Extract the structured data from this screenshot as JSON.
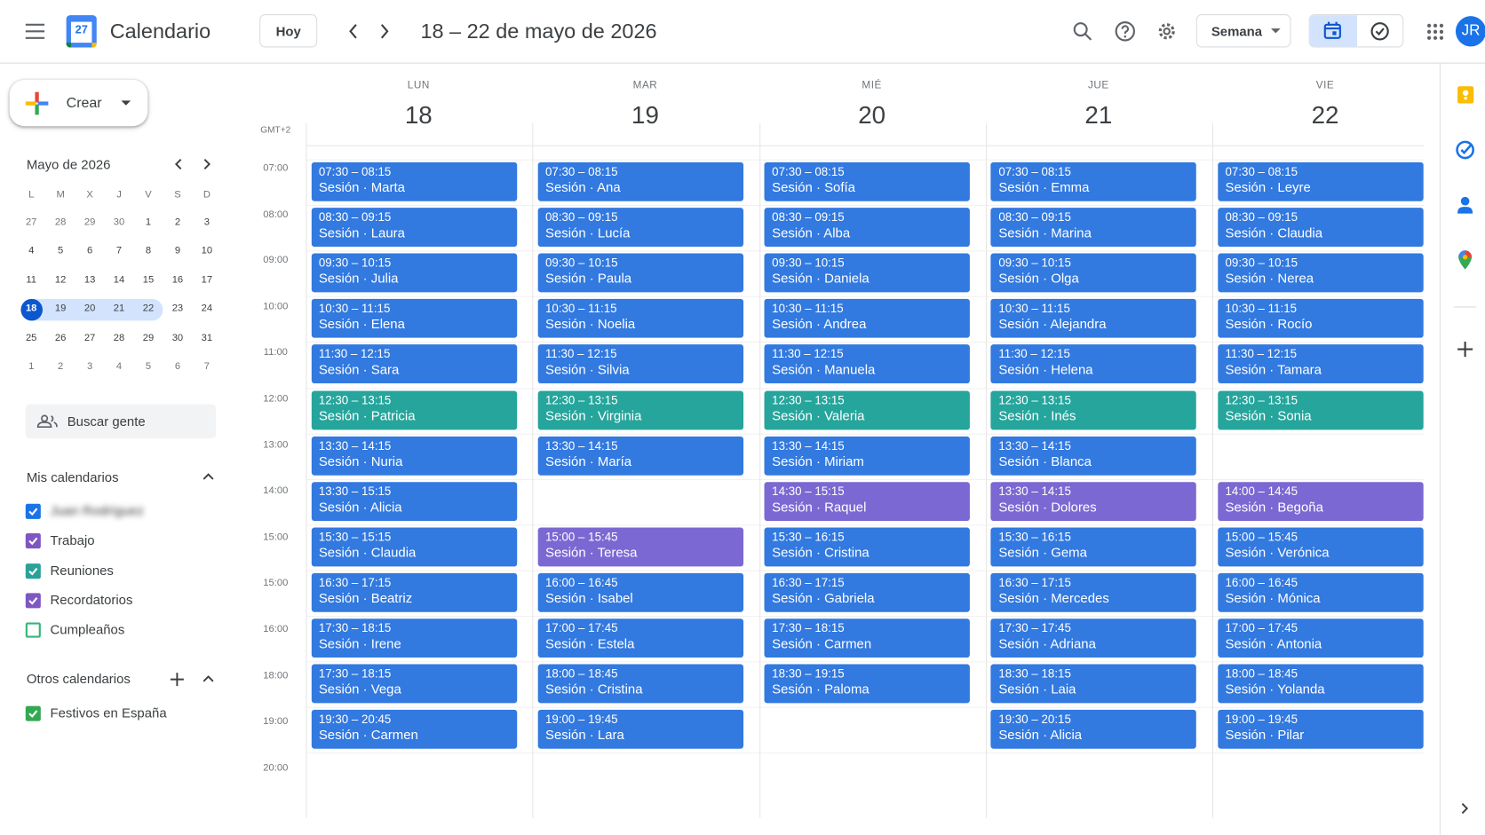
{
  "header": {
    "logo_day": "27",
    "app_name": "Calendario",
    "today_button": "Hoy",
    "date_range": "18 – 22 de mayo de 2026",
    "view_selector": "Semana",
    "avatar_initials": "JR"
  },
  "sidebar": {
    "create_button": "Crear",
    "mini_calendar": {
      "title": "Mayo de 2026",
      "weekdays": [
        "L",
        "M",
        "X",
        "J",
        "V",
        "S",
        "D"
      ],
      "weeks": [
        [
          "27",
          "28",
          "29",
          "30",
          "1",
          "2",
          "3"
        ],
        [
          "4",
          "5",
          "6",
          "7",
          "8",
          "9",
          "10"
        ],
        [
          "11",
          "12",
          "13",
          "14",
          "15",
          "16",
          "17"
        ],
        [
          "18",
          "19",
          "20",
          "21",
          "22",
          "23",
          "24"
        ],
        [
          "25",
          "26",
          "27",
          "28",
          "29",
          "30",
          "31"
        ],
        [
          "1",
          "2",
          "3",
          "4",
          "5",
          "6",
          "7"
        ]
      ],
      "today": "18"
    },
    "search_people": "Buscar gente",
    "my_calendars": {
      "title": "Mis calendarios",
      "items": [
        {
          "label": "Juan Rodríguez",
          "color": "#1a73e8",
          "checked": true,
          "blurred": true
        },
        {
          "label": "Trabajo",
          "color": "#7e57c2",
          "checked": true
        },
        {
          "label": "Reuniones",
          "color": "#2aa198",
          "checked": true
        },
        {
          "label": "Recordatorios",
          "color": "#7e57c2",
          "checked": true
        },
        {
          "label": "Cumpleaños",
          "color": "#33b679",
          "checked": false
        }
      ]
    },
    "other_calendars": {
      "title": "Otros calendarios",
      "items": [
        {
          "label": "Festivos en España",
          "color": "#33a852",
          "checked": true
        }
      ]
    }
  },
  "week": {
    "timezone": "GMT+2",
    "hours": [
      "07:00",
      "08:00",
      "09:00",
      "10:00",
      "11:00",
      "12:00",
      "13:00",
      "14:00",
      "15:00",
      "15:00",
      "16:00",
      "18:00",
      "19:00",
      "20:00"
    ],
    "days": [
      {
        "weekday": "LUN",
        "day": "18",
        "events": [
          {
            "time": "07:30 – 08:15",
            "title": "Sesión · Marta",
            "color": "#3279e0"
          },
          {
            "time": "08:30 – 09:15",
            "title": "Sesión · Laura",
            "color": "#3279e0"
          },
          {
            "time": "09:30 – 10:15",
            "title": "Sesión · Julia",
            "color": "#3279e0"
          },
          {
            "time": "10:30 – 11:15",
            "title": "Sesión · Elena",
            "color": "#3279e0"
          },
          {
            "time": "11:30 – 12:15",
            "title": "Sesión · Sara",
            "color": "#3279e0"
          },
          {
            "time": "12:30 – 13:15",
            "title": "Sesión · Patricia",
            "color": "#26a59c"
          },
          {
            "time": "13:30 – 14:15",
            "title": "Sesión · Nuria",
            "color": "#3279e0"
          },
          {
            "time": "13:30 – 15:15",
            "title": "Sesión · Alicia",
            "color": "#3279e0"
          },
          {
            "time": "15:30 – 15:15",
            "title": "Sesión · Claudia",
            "color": "#3279e0"
          },
          {
            "time": "16:30 – 17:15",
            "title": "Sesión · Beatriz",
            "color": "#3279e0"
          },
          {
            "time": "17:30 – 18:15",
            "title": "Sesión · Irene",
            "color": "#3279e0"
          },
          {
            "time": "17:30 – 18:15",
            "title": "Sesión · Vega",
            "color": "#3279e0"
          },
          {
            "time": "19:30 – 20:45",
            "title": "Sesión · Carmen",
            "color": "#3279e0"
          }
        ]
      },
      {
        "weekday": "MAR",
        "day": "19",
        "events": [
          {
            "time": "07:30 – 08:15",
            "title": "Sesión · Ana",
            "color": "#3279e0"
          },
          {
            "time": "08:30 – 09:15",
            "title": "Sesión · Lucía",
            "color": "#3279e0"
          },
          {
            "time": "09:30 – 10:15",
            "title": "Sesión · Paula",
            "color": "#3279e0"
          },
          {
            "time": "10:30 – 11:15",
            "title": "Sesión · Noelia",
            "color": "#3279e0"
          },
          {
            "time": "11:30 – 12:15",
            "title": "Sesión · Silvia",
            "color": "#3279e0"
          },
          {
            "time": "12:30 – 13:15",
            "title": "Sesión · Virginia",
            "color": "#26a59c"
          },
          {
            "time": "13:30 – 14:15",
            "title": "Sesión · María",
            "color": "#3279e0"
          },
          null,
          {
            "time": "15:00 – 15:45",
            "title": "Sesión · Teresa",
            "color": "#7b68d2"
          },
          {
            "time": "16:00 – 16:45",
            "title": "Sesión · Isabel",
            "color": "#3279e0"
          },
          {
            "time": "17:00 – 17:45",
            "title": "Sesión · Estela",
            "color": "#3279e0"
          },
          {
            "time": "18:00 – 18:45",
            "title": "Sesión · Cristina",
            "color": "#3279e0"
          },
          {
            "time": "19:00 – 19:45",
            "title": "Sesión · Lara",
            "color": "#3279e0"
          }
        ]
      },
      {
        "weekday": "MIÉ",
        "day": "20",
        "events": [
          {
            "time": "07:30 – 08:15",
            "title": "Sesión · Sofía",
            "color": "#3279e0"
          },
          {
            "time": "08:30 – 09:15",
            "title": "Sesión · Alba",
            "color": "#3279e0"
          },
          {
            "time": "09:30 – 10:15",
            "title": "Sesión · Daniela",
            "color": "#3279e0"
          },
          {
            "time": "10:30 – 11:15",
            "title": "Sesión · Andrea",
            "color": "#3279e0"
          },
          {
            "time": "11:30 – 12:15",
            "title": "Sesión · Manuela",
            "color": "#3279e0"
          },
          {
            "time": "12:30 – 13:15",
            "title": "Sesión · Valeria",
            "color": "#26a59c"
          },
          {
            "time": "13:30 – 14:15",
            "title": "Sesión · Miriam",
            "color": "#3279e0"
          },
          {
            "time": "14:30 – 15:15",
            "title": "Sesión · Raquel",
            "color": "#7b68d2"
          },
          {
            "time": "15:30 – 16:15",
            "title": "Sesión · Cristina",
            "color": "#3279e0"
          },
          {
            "time": "16:30 – 17:15",
            "title": "Sesión · Gabriela",
            "color": "#3279e0"
          },
          {
            "time": "17:30 – 18:15",
            "title": "Sesión · Carmen",
            "color": "#3279e0"
          },
          {
            "time": "18:30 – 19:15",
            "title": "Sesión · Paloma",
            "color": "#3279e0"
          },
          null
        ]
      },
      {
        "weekday": "JUE",
        "day": "21",
        "events": [
          {
            "time": "07:30 – 08:15",
            "title": "Sesión · Emma",
            "color": "#3279e0"
          },
          {
            "time": "08:30 – 09:15",
            "title": "Sesión · Marina",
            "color": "#3279e0"
          },
          {
            "time": "09:30 – 10:15",
            "title": "Sesión · Olga",
            "color": "#3279e0"
          },
          {
            "time": "10:30 – 11:15",
            "title": "Sesión · Alejandra",
            "color": "#3279e0"
          },
          {
            "time": "11:30 – 12:15",
            "title": "Sesión · Helena",
            "color": "#3279e0"
          },
          {
            "time": "12:30 – 13:15",
            "title": "Sesión · Inés",
            "color": "#26a59c"
          },
          {
            "time": "13:30 – 14:15",
            "title": "Sesión · Blanca",
            "color": "#3279e0"
          },
          {
            "time": "13:30 – 14:15",
            "title": "Sesión · Dolores",
            "color": "#7b68d2"
          },
          {
            "time": "15:30 – 16:15",
            "title": "Sesión · Gema",
            "color": "#3279e0"
          },
          {
            "time": "16:30 – 17:15",
            "title": "Sesión · Mercedes",
            "color": "#3279e0"
          },
          {
            "time": "17:30 – 17:45",
            "title": "Sesión · Adriana",
            "color": "#3279e0"
          },
          {
            "time": "18:30 – 18:15",
            "title": "Sesión · Laia",
            "color": "#3279e0"
          },
          {
            "time": "19:30 – 20:15",
            "title": "Sesión · Alicia",
            "color": "#3279e0"
          }
        ]
      },
      {
        "weekday": "VIE",
        "day": "22",
        "events": [
          {
            "time": "07:30 – 08:15",
            "title": "Sesión · Leyre",
            "color": "#3279e0"
          },
          {
            "time": "08:30 – 09:15",
            "title": "Sesión · Claudia",
            "color": "#3279e0"
          },
          {
            "time": "09:30 – 10:15",
            "title": "Sesión · Nerea",
            "color": "#3279e0"
          },
          {
            "time": "10:30 – 11:15",
            "title": "Sesión · Rocío",
            "color": "#3279e0"
          },
          {
            "time": "11:30 – 12:15",
            "title": "Sesión · Tamara",
            "color": "#3279e0"
          },
          {
            "time": "12:30 – 13:15",
            "title": "Sesión · Sonia",
            "color": "#26a59c"
          },
          null,
          {
            "time": "14:00 – 14:45",
            "title": "Sesión · Begoña",
            "color": "#7b68d2"
          },
          {
            "time": "15:00 – 15:45",
            "title": "Sesión · Verónica",
            "color": "#3279e0"
          },
          {
            "time": "16:00 – 16:45",
            "title": "Sesión · Mónica",
            "color": "#3279e0"
          },
          {
            "time": "17:00 – 17:45",
            "title": "Sesión · Antonia",
            "color": "#3279e0"
          },
          {
            "time": "18:00 – 18:45",
            "title": "Sesión · Yolanda",
            "color": "#3279e0"
          },
          {
            "time": "19:00 – 19:45",
            "title": "Sesión · Pilar",
            "color": "#3279e0"
          }
        ]
      }
    ]
  }
}
